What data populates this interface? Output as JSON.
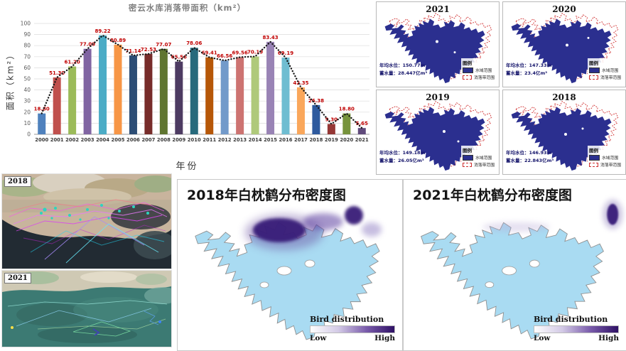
{
  "chart_data": {
    "type": "bar",
    "title": "密云水库消落带面积（km²）",
    "xlabel": "年份",
    "ylabel": "面积（km²）",
    "categories": [
      "2000",
      "2001",
      "2002",
      "2003",
      "2004",
      "2005",
      "2006",
      "2007",
      "2008",
      "2009",
      "2010",
      "2011",
      "2012",
      "2013",
      "2014",
      "2015",
      "2016",
      "2017",
      "2018",
      "2019",
      "2020",
      "2021"
    ],
    "values": [
      18.8,
      51.3,
      61.2,
      77.09,
      89.22,
      80.89,
      71.14,
      72.53,
      77.07,
      65.56,
      78.06,
      69.41,
      66.56,
      69.56,
      70.19,
      83.43,
      69.19,
      42.35,
      26.38,
      9.3,
      18.8,
      5.65
    ],
    "value_labels": [
      "18.80",
      "51.30",
      "61.20",
      "77.09",
      "89.22",
      "80.89",
      "71.14",
      "72.53",
      "77.07",
      "65.56",
      "78.06",
      "69.41",
      "66.56",
      "69.56",
      "70.19",
      "83.43",
      "69.19",
      "42.35",
      "26.38",
      "9.30",
      "18.80",
      "5.65"
    ],
    "ylim": [
      0,
      100
    ],
    "yticks": [
      0,
      10,
      20,
      30,
      40,
      50,
      60,
      70,
      80,
      90,
      100
    ],
    "grid": true,
    "trend_line": "dotted",
    "value_label_color": "#C00000",
    "bar_colors": [
      "#4F81BD",
      "#C0504D",
      "#9BBB59",
      "#8064A2",
      "#4BACC6",
      "#F79646",
      "#2C4D75",
      "#772C2A",
      "#5F7530",
      "#4D3B62",
      "#276A7C",
      "#B65708",
      "#729ACA",
      "#CD7371",
      "#AFC97A",
      "#9983B5",
      "#6FBDD1",
      "#FAA75B",
      "#2E5A9E",
      "#953735",
      "#77933C",
      "#604A7B"
    ]
  },
  "reservoir_maps": {
    "legend_title": "图例",
    "legend_water": "水域范围",
    "legend_drawdown": "消落带范围",
    "water_color": "#2B2F8F",
    "drawdown_color": "#D03030",
    "panels": [
      {
        "year": "2021",
        "water_level": "年均水位：150.77m",
        "storage": "蓄水量：28.447亿m³"
      },
      {
        "year": "2020",
        "water_level": "年均水位：147.33m",
        "storage": "蓄水量：23.4亿m³"
      },
      {
        "year": "2019",
        "water_level": "年均水位：149.18m",
        "storage": "蓄水量：26.05亿m³"
      },
      {
        "year": "2018",
        "water_level": "年均水位：146.93m",
        "storage": "蓄水量：22.843亿m³"
      }
    ]
  },
  "satellite_images": {
    "top_label": "2018",
    "bottom_label": "2021"
  },
  "density_maps": [
    {
      "title": "2018年白枕鹤分布密度图",
      "legend_title": "Bird distribution",
      "legend_low": "Low",
      "legend_high": "High",
      "high_color": "#2E1065",
      "lake_color": "#A9DBF2"
    },
    {
      "title": "2021年白枕鹤分布密度图",
      "legend_title": "Bird distribution",
      "legend_low": "Low",
      "legend_high": "High",
      "high_color": "#2E1065",
      "lake_color": "#A9DBF2"
    }
  ]
}
